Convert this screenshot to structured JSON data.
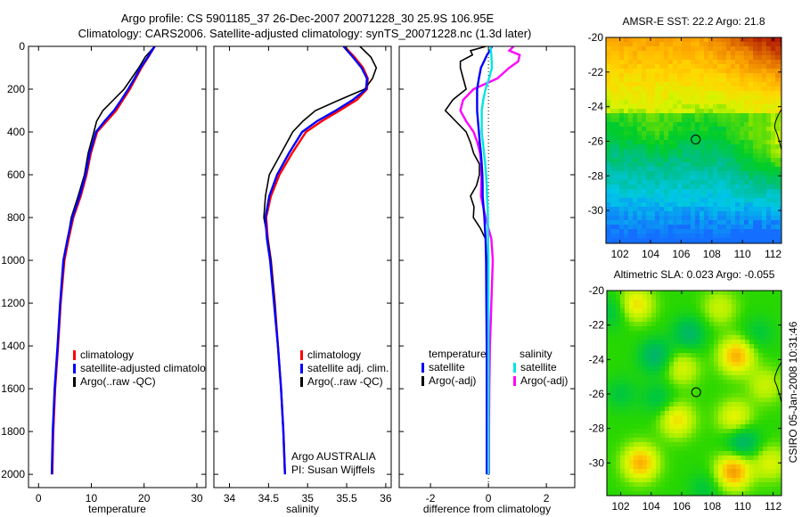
{
  "title_line1": "Argo profile: CS 5901185_37 26-Dec-2007 20071228_30 25.9S 106.95E",
  "title_line2": "Climatology: CARS2006. Satellite-adjusted climatology: synTS_20071228.nc (1.3d later)",
  "side_label": "CSIRO 05-Jan-2008 10:31:46",
  "colors": {
    "climatology": "#ff0000",
    "satellite": "#0000ff",
    "argo": "#000000",
    "sal_satellite": "#00e5e5",
    "sal_argo": "#ff00ff"
  },
  "chart_data": [
    {
      "type": "line",
      "id": "temperature",
      "xlabel": "temperature",
      "ylabel": "",
      "xlim": [
        -1.9,
        31.7
      ],
      "ylim": [
        2062,
        0
      ],
      "xticks": [
        0,
        10,
        20,
        30
      ],
      "yticks": [
        0,
        200,
        400,
        600,
        800,
        1000,
        1200,
        1400,
        1600,
        1800,
        2000
      ],
      "legend": [
        "climatology",
        "satellite-adjusted climatology",
        "Argo(..raw -QC)"
      ],
      "depth": [
        0,
        50,
        100,
        150,
        200,
        250,
        300,
        350,
        400,
        500,
        600,
        700,
        800,
        900,
        1000,
        1200,
        1400,
        1600,
        1800,
        2000
      ],
      "series": [
        {
          "name": "climatology",
          "color": "#ff0000",
          "values": [
            22.0,
            20.8,
            19.5,
            18.4,
            17.3,
            16.0,
            14.7,
            12.9,
            11.1,
            9.9,
            9.1,
            8.0,
            6.6,
            5.7,
            4.9,
            4.2,
            3.7,
            3.15,
            2.8,
            2.6
          ]
        },
        {
          "name": "Argo(..raw -QC)",
          "color": "#000000",
          "values": [
            22.0,
            20.2,
            19.0,
            17.6,
            16.2,
            14.2,
            12.2,
            11.0,
            10.5,
            9.4,
            8.7,
            7.5,
            6.2,
            5.5,
            4.8,
            4.1,
            3.6,
            3.1,
            2.75,
            2.55
          ]
        },
        {
          "name": "satellite-adjusted climatology",
          "color": "#0000ff",
          "values": [
            22.0,
            20.7,
            19.3,
            18.2,
            17.0,
            15.7,
            14.3,
            12.5,
            10.9,
            9.7,
            8.9,
            7.8,
            6.4,
            5.5,
            4.7,
            4.1,
            3.6,
            3.05,
            2.7,
            2.5
          ]
        }
      ]
    },
    {
      "type": "line",
      "id": "salinity",
      "xlabel": "salinity",
      "xlim": [
        33.8,
        36.07
      ],
      "ylim": [
        2062,
        0
      ],
      "xticks": [
        34,
        34.5,
        35,
        35.5,
        36
      ],
      "legend": [
        "climatology",
        "satellite adj. clim.",
        "Argo(..raw -QC)"
      ],
      "annotation": [
        "Argo AUSTRALIA",
        "PI: Susan Wijffels"
      ],
      "depth": [
        0,
        50,
        100,
        150,
        200,
        250,
        300,
        350,
        400,
        500,
        600,
        700,
        800,
        900,
        1000,
        1200,
        1400,
        1600,
        1800,
        2000
      ],
      "series": [
        {
          "name": "climatology",
          "color": "#ff0000",
          "values": [
            35.47,
            35.6,
            35.71,
            35.77,
            35.76,
            35.63,
            35.41,
            35.18,
            34.98,
            34.8,
            34.64,
            34.53,
            34.47,
            34.49,
            34.53,
            34.58,
            34.62,
            34.66,
            34.69,
            34.71
          ]
        },
        {
          "name": "Argo(..raw -QC)",
          "color": "#000000",
          "values": [
            35.67,
            35.81,
            35.88,
            35.83,
            35.73,
            35.41,
            35.1,
            34.94,
            34.81,
            34.66,
            34.51,
            34.46,
            34.44,
            34.49,
            34.53,
            34.58,
            34.62,
            34.66,
            34.69,
            34.71
          ]
        },
        {
          "name": "satellite adj. clim.",
          "color": "#0000ff",
          "values": [
            35.46,
            35.58,
            35.69,
            35.76,
            35.75,
            35.58,
            35.36,
            35.12,
            34.93,
            34.76,
            34.61,
            34.51,
            34.46,
            34.48,
            34.52,
            34.57,
            34.62,
            34.66,
            34.69,
            34.71
          ]
        }
      ]
    },
    {
      "type": "line",
      "id": "difference",
      "xlabel": "difference from climatology",
      "xlim": [
        -3.08,
        2.98
      ],
      "ylim": [
        2062,
        0
      ],
      "xticks": [
        -2,
        0,
        2
      ],
      "legend_headers": [
        "temperature",
        "salinity"
      ],
      "legend": [
        "satellite",
        "Argo(-adj)",
        "satellite",
        "Argo(-adj)"
      ],
      "depth": [
        0,
        20,
        40,
        70,
        100,
        150,
        200,
        250,
        300,
        350,
        400,
        450,
        500,
        550,
        600,
        650,
        700,
        750,
        800,
        850,
        900,
        1000,
        1200,
        1400,
        1600,
        1800,
        2000
      ],
      "series": [
        {
          "name": "temperature Argo(-adj)",
          "color": "#000000",
          "values": [
            -0.08,
            -0.62,
            -0.55,
            -0.97,
            -0.97,
            -0.87,
            -0.77,
            -1.23,
            -1.49,
            -1.13,
            -0.77,
            -0.62,
            -0.51,
            -0.31,
            -0.31,
            -0.41,
            -0.62,
            -0.5,
            -0.52,
            -0.28,
            -0.1,
            -0.05,
            -0.03,
            -0.03,
            -0.03,
            -0.03,
            -0.03
          ]
        },
        {
          "name": "salinity Argo(-adj)",
          "color": "#ff00ff",
          "values": [
            0.87,
            0.72,
            1.08,
            1.03,
            0.72,
            0.31,
            -0.51,
            -0.87,
            -0.97,
            -0.77,
            -0.51,
            -0.38,
            -0.29,
            -0.25,
            -0.24,
            -0.25,
            -0.26,
            -0.18,
            -0.1,
            0.0,
            0.1,
            0.15,
            0.1,
            0.05,
            0.03,
            0.02,
            0.02
          ]
        },
        {
          "name": "temperature satellite",
          "color": "#0000ff",
          "values": [
            0.12,
            0.05,
            -0.05,
            -0.15,
            -0.26,
            -0.33,
            -0.39,
            -0.39,
            -0.39,
            -0.36,
            -0.33,
            -0.3,
            -0.26,
            -0.23,
            -0.21,
            -0.2,
            -0.2,
            -0.17,
            -0.14,
            -0.12,
            -0.1,
            -0.08,
            -0.07,
            -0.06,
            -0.06,
            -0.06,
            -0.06
          ]
        },
        {
          "name": "salinity satellite",
          "color": "#00e5e5",
          "values": [
            0.08,
            0.08,
            0.1,
            0.11,
            0.12,
            0.02,
            -0.1,
            -0.18,
            -0.23,
            -0.23,
            -0.23,
            -0.19,
            -0.15,
            -0.11,
            -0.08,
            -0.06,
            -0.05,
            -0.03,
            -0.02,
            -0.02,
            -0.01,
            0,
            0,
            0,
            0,
            0,
            0
          ]
        }
      ]
    },
    {
      "type": "heatmap",
      "id": "sst_map",
      "title": "AMSR-E SST: 22.2 Argo: 21.8",
      "xlim": [
        101.09,
        112.55
      ],
      "ylim": [
        -31.9,
        -20
      ],
      "xticks": [
        102,
        104,
        106,
        108,
        110,
        112
      ],
      "yticks": [
        -20,
        -22,
        -24,
        -26,
        -28,
        -30
      ],
      "ytick_labels": [
        "-20",
        "-22",
        "-24",
        "-26",
        "-28",
        "-30"
      ],
      "marker": {
        "lon": 106.95,
        "lat": -25.9
      }
    },
    {
      "type": "heatmap",
      "id": "sla_map",
      "title": "Altimetric SLA: 0.023 Argo: -0.055",
      "xlim": [
        101.09,
        112.55
      ],
      "ylim": [
        -31.9,
        -20
      ],
      "xticks": [
        102,
        104,
        106,
        108,
        110,
        112
      ],
      "yticks": [
        -20,
        -22,
        -24,
        -26,
        -28,
        -30
      ],
      "ytick_labels": [
        "-20",
        "-22",
        "-24",
        "-26",
        "-28",
        "-30"
      ],
      "marker": {
        "lon": 106.95,
        "lat": -25.9
      }
    }
  ]
}
